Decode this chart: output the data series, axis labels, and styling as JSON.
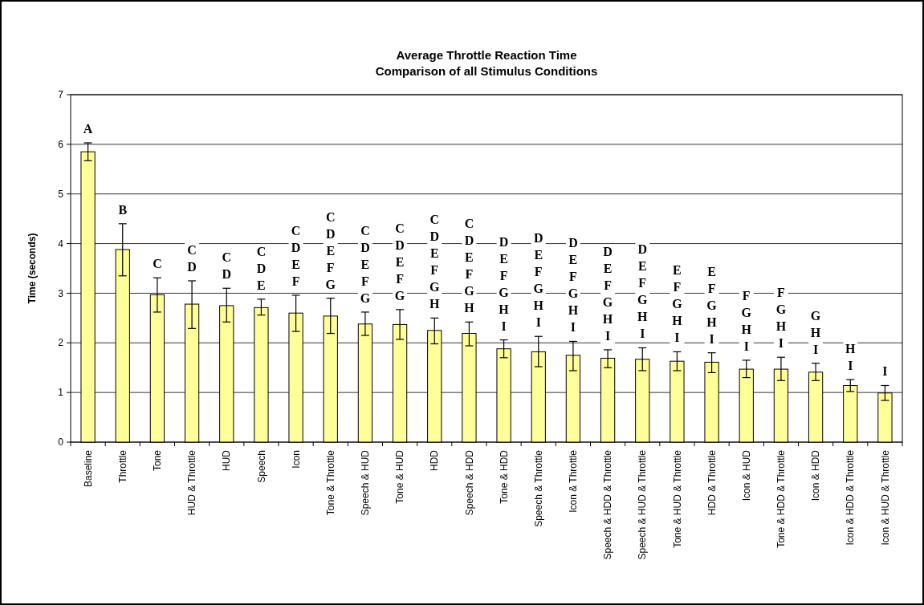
{
  "chart_data": {
    "type": "bar",
    "title": "Average Throttle Reaction Time\nComparison of all Stimulus Conditions",
    "ylabel": "Time (seconds)",
    "categories": [
      "Baseline",
      "Throttle",
      "Tone",
      "HUD & Throttle",
      "HUD",
      "Speech",
      "Icon",
      "Tone & Throttle",
      "Speech & HUD",
      "Tone & HUD",
      "HDD",
      "Speech & HDD",
      "Tone & HDD",
      "Speech & Throttle",
      "Icon & Throttle",
      "Speech & HDD & Throttle",
      "Speech & HUD & Throttle",
      "Tone & HUD & Throttle",
      "HDD & Throttle",
      "Icon & HUD",
      "Tone & HDD & Throttle",
      "Icon & HDD",
      "Icon & HDD & Throttle",
      "Icon & HUD & Throttle"
    ],
    "values": [
      5.85,
      3.88,
      2.97,
      2.78,
      2.75,
      2.71,
      2.6,
      2.54,
      2.38,
      2.37,
      2.25,
      2.19,
      1.88,
      1.82,
      1.75,
      1.69,
      1.67,
      1.63,
      1.61,
      1.47,
      1.47,
      1.41,
      1.14,
      0.99
    ],
    "errors": [
      [
        5.67,
        6.03
      ],
      [
        3.35,
        4.4
      ],
      [
        2.62,
        3.31
      ],
      [
        2.29,
        3.25
      ],
      [
        2.42,
        3.1
      ],
      [
        2.56,
        2.88
      ],
      [
        2.23,
        2.96
      ],
      [
        2.19,
        2.9
      ],
      [
        2.15,
        2.62
      ],
      [
        2.07,
        2.67
      ],
      [
        1.98,
        2.5
      ],
      [
        1.94,
        2.42
      ],
      [
        1.7,
        2.06
      ],
      [
        1.52,
        2.13
      ],
      [
        1.44,
        2.03
      ],
      [
        1.5,
        1.86
      ],
      [
        1.44,
        1.9
      ],
      [
        1.44,
        1.82
      ],
      [
        1.4,
        1.8
      ],
      [
        1.3,
        1.65
      ],
      [
        1.24,
        1.71
      ],
      [
        1.24,
        1.59
      ],
      [
        1.02,
        1.26
      ],
      [
        0.84,
        1.14
      ]
    ],
    "color": "#ffff99",
    "ylim": [
      0,
      7
    ],
    "yticks": [
      0,
      1,
      2,
      3,
      4,
      5,
      6,
      7
    ],
    "grid": "y",
    "annotations": [
      {
        "text": "A",
        "x": "Baseline",
        "y": 6.03
      },
      {
        "text": "B",
        "x": "Throttle",
        "y": 4.4
      },
      {
        "text": "C",
        "x": "Tone",
        "y": 3.31
      },
      {
        "text": "C\nD",
        "x": "HUD & Throttle",
        "y": 3.25
      },
      {
        "text": "C\nD",
        "x": "HUD",
        "y": 3.1
      },
      {
        "text": "C\nD\nE",
        "x": "Speech",
        "y": 2.88
      },
      {
        "text": "C\nD\nE\nF",
        "x": "Icon",
        "y": 2.96
      },
      {
        "text": "C\nD\nE\nF\nG",
        "x": "Tone & Throttle",
        "y": 2.9
      },
      {
        "text": "C\nD\nE\nF\nG",
        "x": "Speech & HUD",
        "y": 2.62
      },
      {
        "text": "C\nD\nE\nF\nG",
        "x": "Tone & HUD",
        "y": 2.67
      },
      {
        "text": "C\nD\nE\nF\nG\nH",
        "x": "HDD",
        "y": 2.5
      },
      {
        "text": "C\nD\nE\nF\nG\nH",
        "x": "Speech & HDD",
        "y": 2.42
      },
      {
        "text": "D\nE\nF\nG\nH\nI",
        "x": "Tone & HDD",
        "y": 2.06
      },
      {
        "text": "D\nE\nF\nG\nH\nI",
        "x": "Speech & Throttle",
        "y": 2.13
      },
      {
        "text": "D\nE\nF\nG\nH\nI",
        "x": "Icon & Throttle",
        "y": 2.03
      },
      {
        "text": "D\nE\nF\nG\nH\nI",
        "x": "Speech & HDD & Throttle",
        "y": 1.86
      },
      {
        "text": "D\nE\nF\nG\nH\nI",
        "x": "Speech & HUD & Throttle",
        "y": 1.9
      },
      {
        "text": "E\nF\nG\nH\nI",
        "x": "Tone & HUD & Throttle",
        "y": 1.82
      },
      {
        "text": "E\nF\nG\nH\nI",
        "x": "HDD & Throttle",
        "y": 1.8
      },
      {
        "text": "F\nG\nH\nI",
        "x": "Icon & HUD",
        "y": 1.65
      },
      {
        "text": "F\nG\nH\nI",
        "x": "Tone & HDD & Throttle",
        "y": 1.71
      },
      {
        "text": "G\nH\nI",
        "x": "Icon & HDD",
        "y": 1.59
      },
      {
        "text": "H\nI",
        "x": "Icon & HDD & Throttle",
        "y": 1.26
      },
      {
        "text": "I",
        "x": "Icon & HUD & Throttle",
        "y": 1.14
      }
    ]
  }
}
